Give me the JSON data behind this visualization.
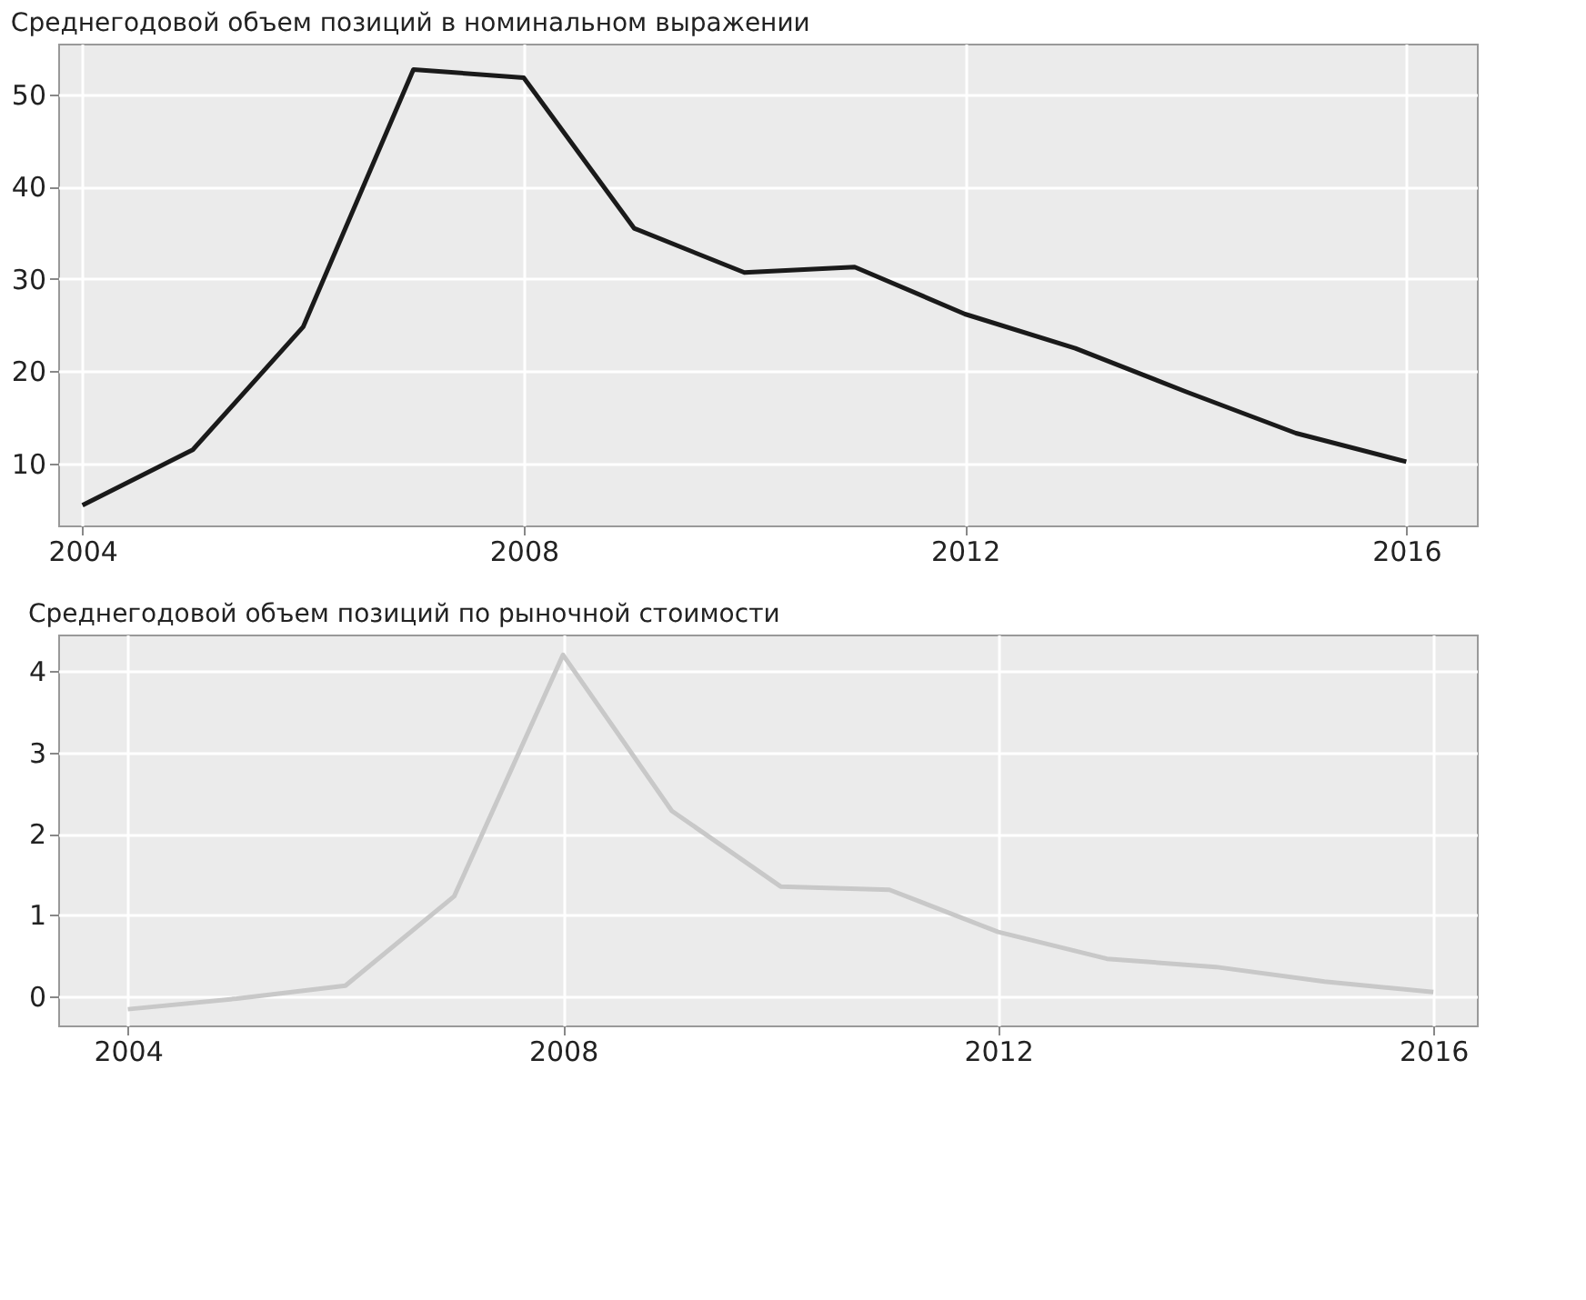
{
  "chart_data": [
    {
      "type": "line",
      "title": "Среднегодовой объем позиций в номинальном выражении",
      "x": [
        2004,
        2005,
        2006,
        2007,
        2008,
        2009,
        2010,
        2011,
        2012,
        2013,
        2014,
        2015,
        2016
      ],
      "series": [
        {
          "color": "#1a1a1a",
          "values": [
            5.5,
            11.5,
            24.8,
            52.7,
            51.8,
            35.5,
            30.7,
            31.3,
            26.2,
            22.5,
            17.8,
            13.3,
            10.2
          ]
        }
      ],
      "xlim": [
        2003.78,
        2016.64
      ],
      "xticks": [
        2004,
        2008,
        2012,
        2016
      ],
      "ylim": [
        3.3,
        55.5
      ],
      "yticks": [
        10,
        20,
        30,
        40,
        50
      ],
      "grid": true
    },
    {
      "type": "line",
      "title": "Среднегодовой объем позиций по рыночной стоимости",
      "x": [
        2004,
        2005,
        2006,
        2007,
        2008,
        2009,
        2010,
        2011,
        2012,
        2013,
        2014,
        2015,
        2016
      ],
      "series": [
        {
          "color": "#c8c8c8",
          "values": [
            -0.16,
            -0.03,
            0.13,
            1.23,
            4.2,
            2.28,
            1.35,
            1.31,
            0.79,
            0.46,
            0.36,
            0.18,
            0.05
          ]
        }
      ],
      "xlim": [
        2003.36,
        2016.4
      ],
      "xticks": [
        2004,
        2008,
        2012,
        2016
      ],
      "ylim": [
        -0.36,
        4.45
      ],
      "yticks": [
        0,
        1,
        2,
        3,
        4
      ],
      "grid": true
    }
  ]
}
